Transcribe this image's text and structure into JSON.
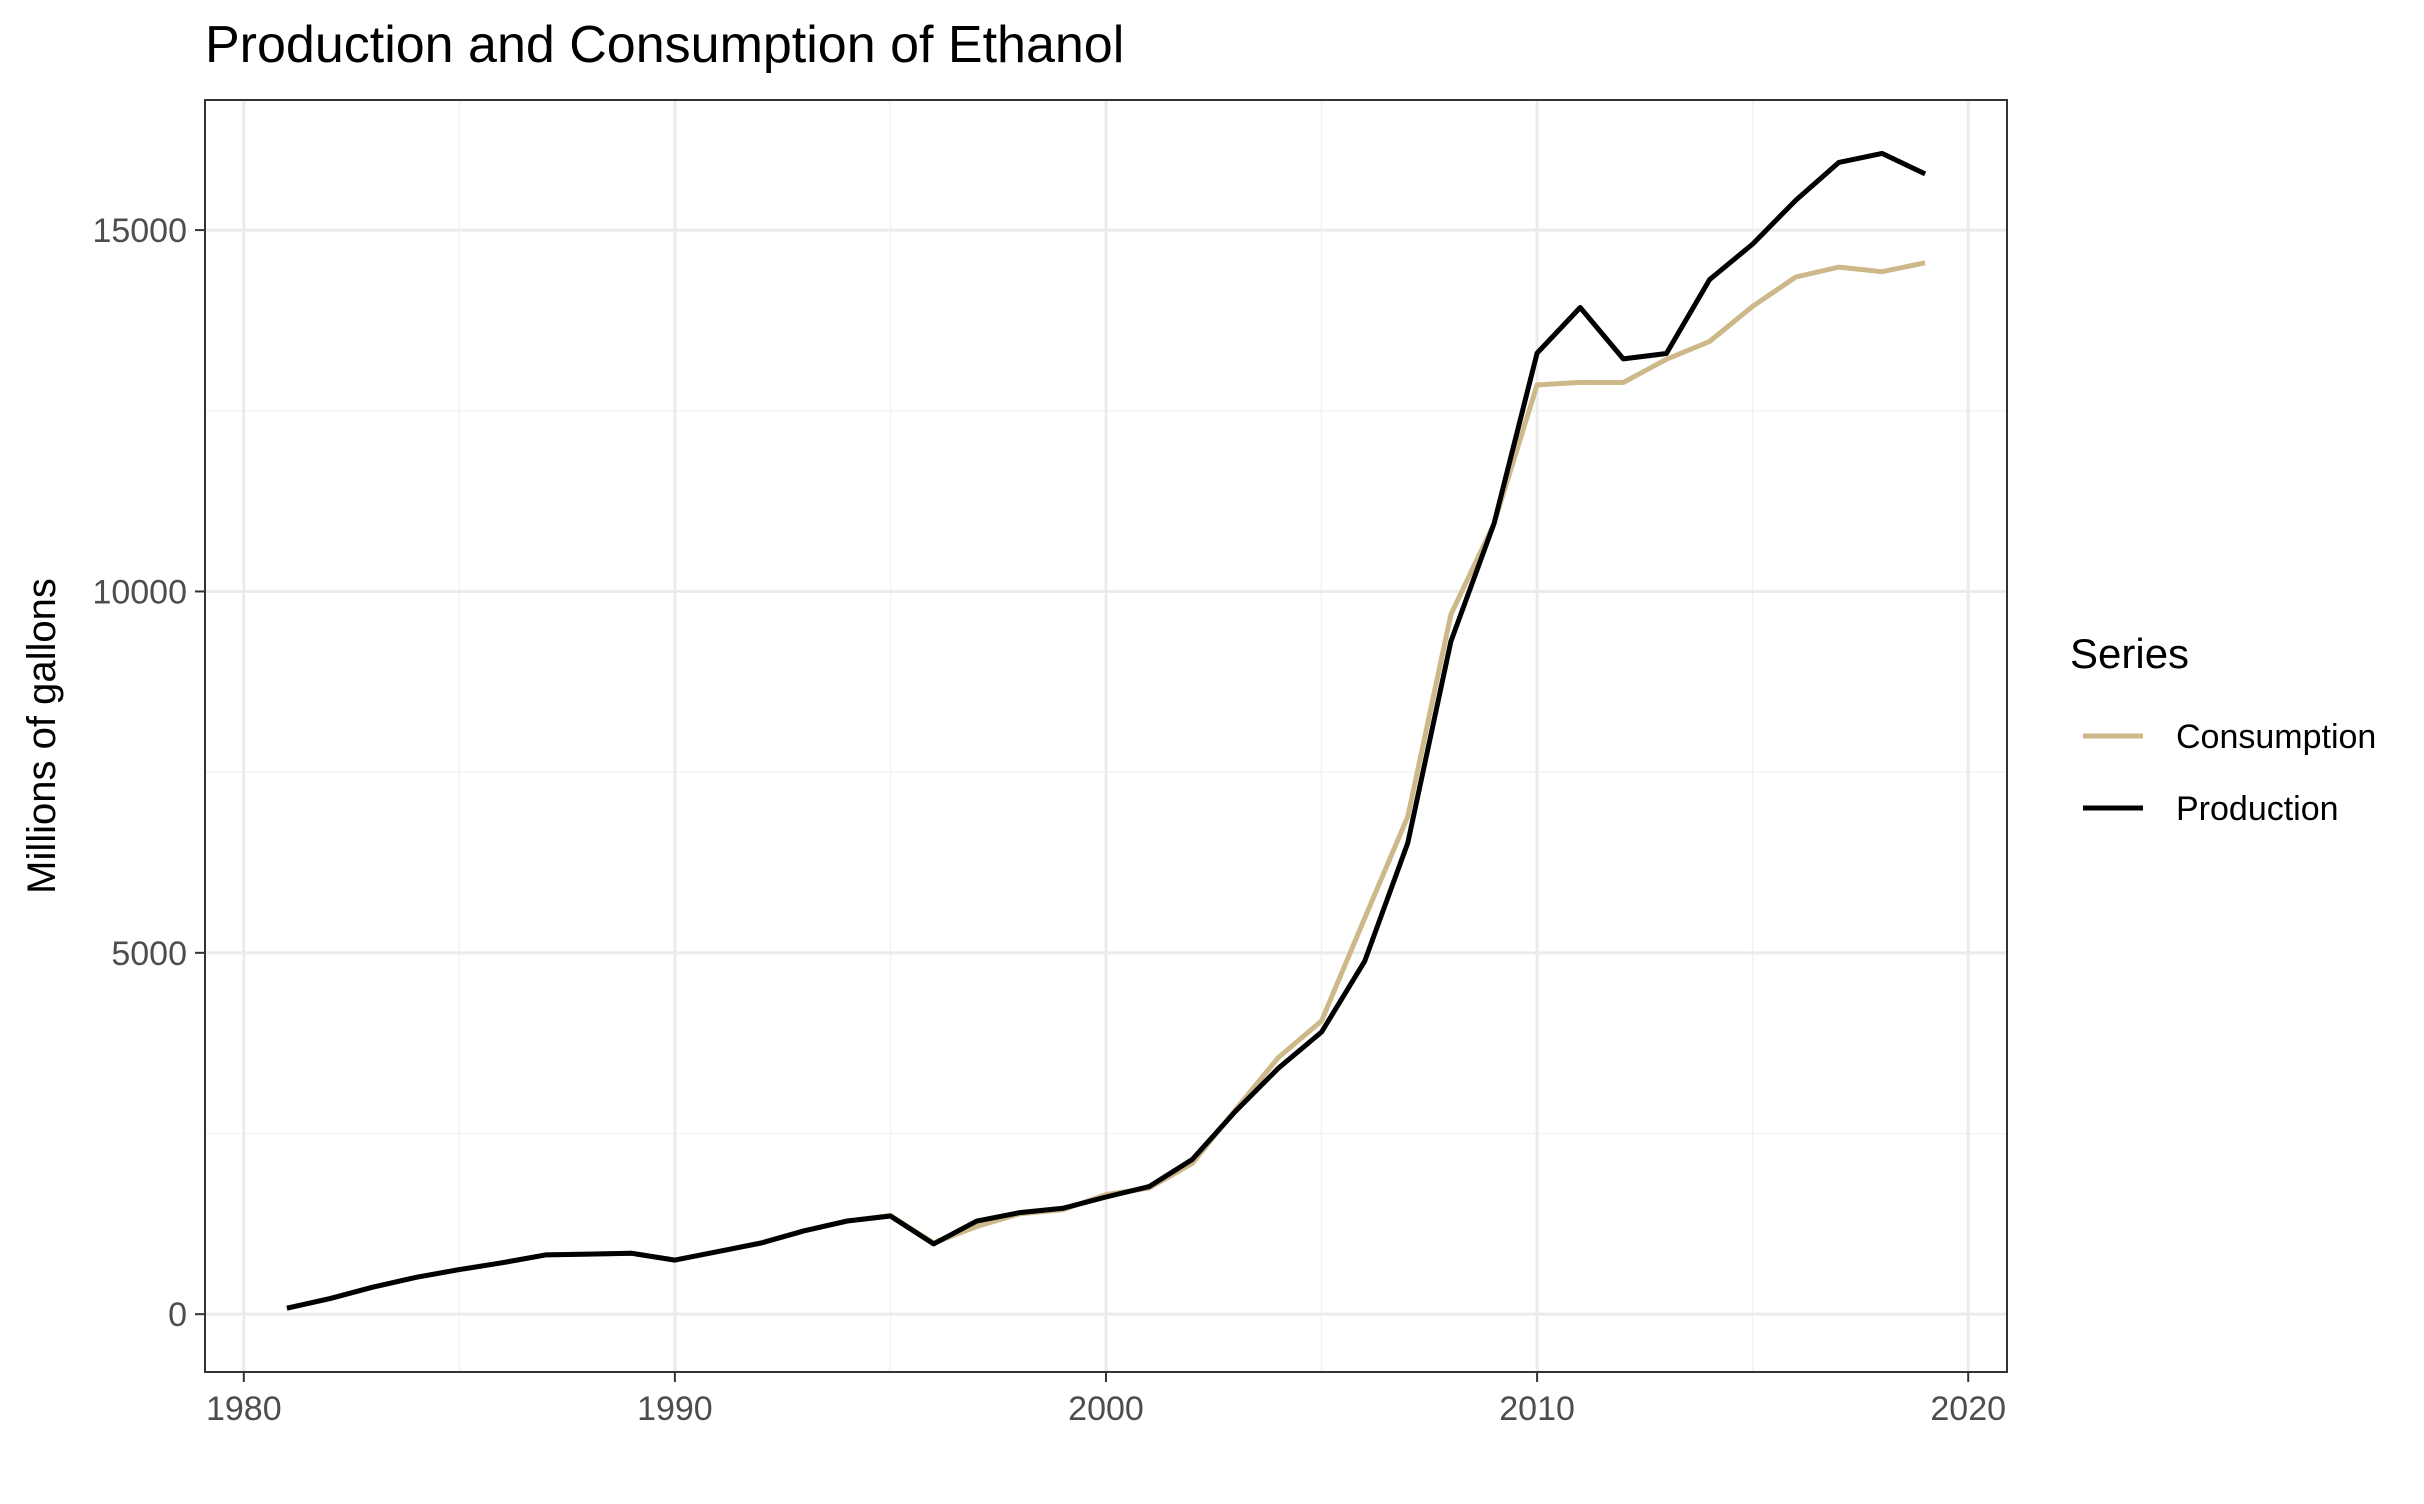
{
  "chart_data": {
    "type": "line",
    "title": "Production and Consumption of Ethanol",
    "xlabel": "",
    "ylabel": "Millions of gallons",
    "xlim": [
      1979.1,
      2020.9
    ],
    "ylim": [
      -800,
      16800
    ],
    "x_ticks": [
      1980,
      1990,
      2000,
      2010,
      2020
    ],
    "y_ticks": [
      0,
      5000,
      10000,
      15000
    ],
    "x_tick_labels": [
      "1980",
      "1990",
      "2000",
      "2010",
      "2020"
    ],
    "y_tick_labels": [
      "0",
      "5000",
      "10000",
      "15000"
    ],
    "grid": true,
    "legend": {
      "title": "Series",
      "position": "right"
    },
    "x": [
      1981,
      1982,
      1983,
      1984,
      1985,
      1986,
      1987,
      1988,
      1989,
      1990,
      1991,
      1992,
      1993,
      1994,
      1995,
      1996,
      1997,
      1998,
      1999,
      2000,
      2001,
      2002,
      2003,
      2004,
      2005,
      2006,
      2007,
      2008,
      2009,
      2010,
      2011,
      2012,
      2013,
      2014,
      2015,
      2016,
      2017,
      2018,
      2019
    ],
    "series": [
      {
        "name": "Consumption",
        "color": "#cdb88a",
        "values": [
          83,
          215,
          375,
          510,
          617,
          712,
          820,
          831,
          843,
          748,
          866,
          985,
          1154,
          1289,
          1366,
          985,
          1213,
          1391,
          1446,
          1654,
          1744,
          2085,
          2826,
          3552,
          4059,
          5481,
          6886,
          9683,
          10938,
          12858,
          12893,
          12891,
          13212,
          13458,
          13946,
          14351,
          14488,
          14424,
          14547
        ]
      },
      {
        "name": "Production",
        "color": "#000000",
        "values": [
          83,
          215,
          375,
          510,
          617,
          712,
          820,
          831,
          843,
          748,
          866,
          985,
          1154,
          1289,
          1358,
          973,
          1288,
          1405,
          1465,
          1622,
          1765,
          2140,
          2804,
          3404,
          3904,
          4884,
          6521,
          9309,
          10938,
          13298,
          13929,
          13218,
          13293,
          14313,
          14807,
          15413,
          15936,
          16061,
          15778
        ]
      }
    ]
  }
}
